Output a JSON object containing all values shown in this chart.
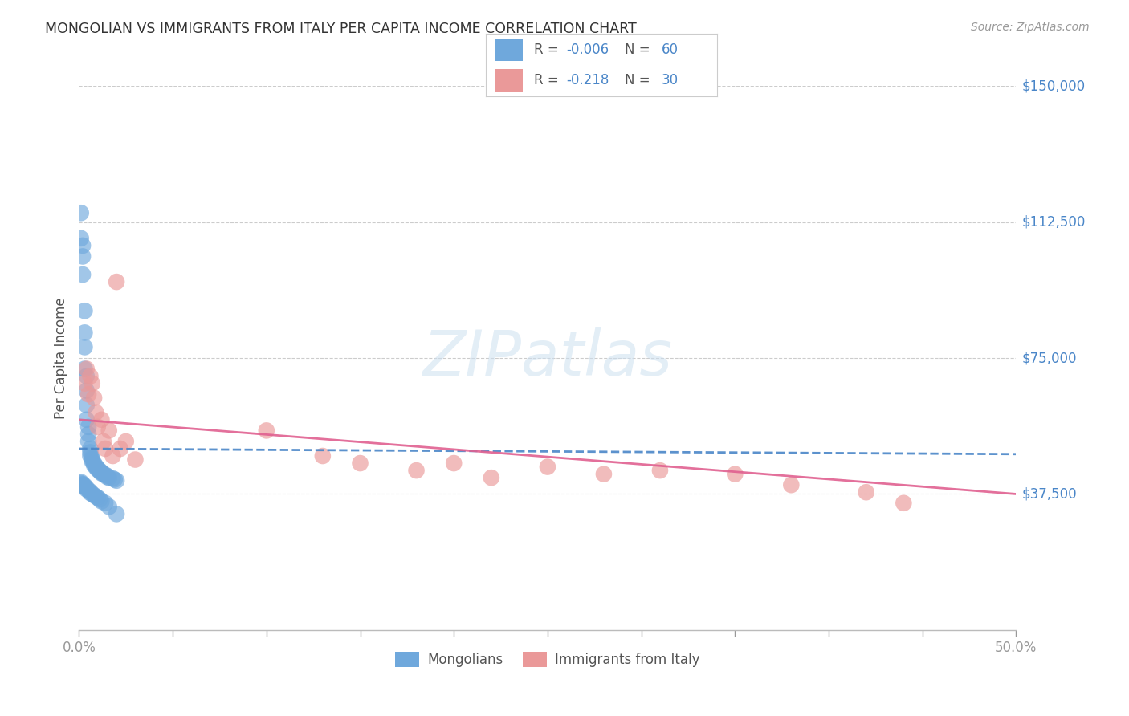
{
  "title": "MONGOLIAN VS IMMIGRANTS FROM ITALY PER CAPITA INCOME CORRELATION CHART",
  "source": "Source: ZipAtlas.com",
  "ylabel": "Per Capita Income",
  "xlim": [
    0.0,
    0.5
  ],
  "ylim": [
    0,
    150000
  ],
  "yticks": [
    0,
    37500,
    75000,
    112500,
    150000
  ],
  "ytick_labels": [
    "",
    "$37,500",
    "$75,000",
    "$112,500",
    "$150,000"
  ],
  "xticks": [
    0.0,
    0.05,
    0.1,
    0.15,
    0.2,
    0.25,
    0.3,
    0.35,
    0.4,
    0.45,
    0.5
  ],
  "mongolian_color": "#6fa8dc",
  "italy_color": "#ea9999",
  "mongolian_line_color": "#4a86c8",
  "italy_line_color": "#e06090",
  "background_color": "#ffffff",
  "grid_color": "#cccccc",
  "mongolian_x": [
    0.001,
    0.001,
    0.002,
    0.002,
    0.002,
    0.003,
    0.003,
    0.003,
    0.003,
    0.004,
    0.004,
    0.004,
    0.004,
    0.005,
    0.005,
    0.005,
    0.006,
    0.006,
    0.006,
    0.007,
    0.007,
    0.007,
    0.008,
    0.008,
    0.009,
    0.009,
    0.01,
    0.01,
    0.011,
    0.011,
    0.012,
    0.012,
    0.013,
    0.014,
    0.015,
    0.015,
    0.016,
    0.018,
    0.019,
    0.02,
    0.001,
    0.001,
    0.002,
    0.002,
    0.003,
    0.003,
    0.004,
    0.004,
    0.005,
    0.006,
    0.006,
    0.007,
    0.008,
    0.009,
    0.01,
    0.011,
    0.012,
    0.014,
    0.016,
    0.02
  ],
  "mongolian_y": [
    115000,
    108000,
    106000,
    103000,
    98000,
    88000,
    82000,
    78000,
    72000,
    70000,
    66000,
    62000,
    58000,
    56000,
    54000,
    52000,
    50000,
    49000,
    48000,
    47500,
    47000,
    46500,
    46000,
    45500,
    45200,
    44800,
    44500,
    44200,
    44000,
    43800,
    43500,
    43200,
    43000,
    42800,
    42500,
    42200,
    42000,
    41800,
    41500,
    41200,
    40800,
    40500,
    40200,
    40000,
    39800,
    39500,
    39200,
    38800,
    38500,
    38200,
    37800,
    37500,
    37200,
    36800,
    36500,
    36000,
    35500,
    35000,
    34000,
    32000
  ],
  "italy_x": [
    0.003,
    0.004,
    0.005,
    0.006,
    0.007,
    0.008,
    0.009,
    0.01,
    0.012,
    0.013,
    0.014,
    0.016,
    0.018,
    0.02,
    0.022,
    0.025,
    0.03,
    0.1,
    0.13,
    0.15,
    0.18,
    0.2,
    0.22,
    0.25,
    0.28,
    0.31,
    0.35,
    0.38,
    0.42,
    0.44
  ],
  "italy_y": [
    68000,
    72000,
    65000,
    70000,
    68000,
    64000,
    60000,
    56000,
    58000,
    52000,
    50000,
    55000,
    48000,
    96000,
    50000,
    52000,
    47000,
    55000,
    48000,
    46000,
    44000,
    46000,
    42000,
    45000,
    43000,
    44000,
    43000,
    40000,
    38000,
    35000
  ],
  "legend_r1": "R = -0.006",
  "legend_n1": "N = 60",
  "legend_r2": "R =  -0.218",
  "legend_n2": "N = 30",
  "watermark": "ZIPatlas",
  "bottom_label1": "Mongolians",
  "bottom_label2": "Immigrants from Italy"
}
